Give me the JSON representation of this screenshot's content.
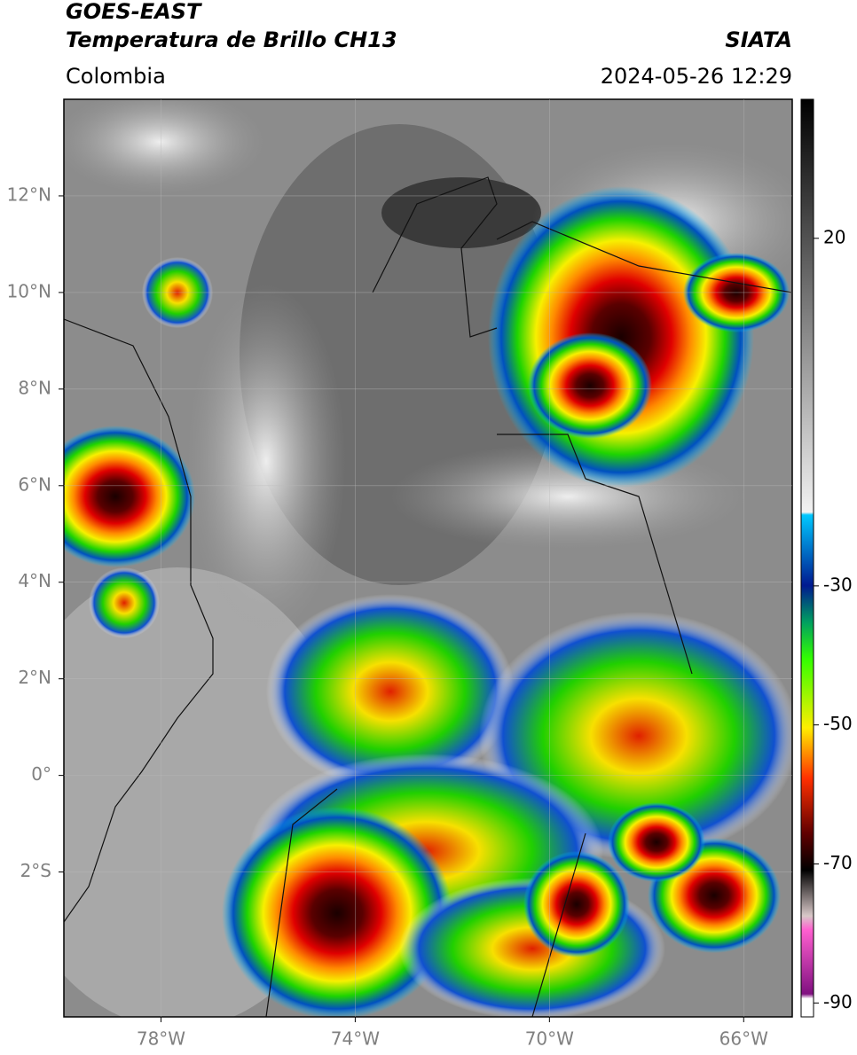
{
  "header": {
    "title": "GOES-EAST",
    "subtitle": "Temperatura de Brillo CH13",
    "source": "SIATA",
    "region": "Colombia",
    "timestamp": "2024-05-26 12:29"
  },
  "map": {
    "lon_range": [
      -80,
      -65
    ],
    "lat_range": [
      -5,
      14
    ],
    "lat_ticks": [
      {
        "value": 12,
        "label": "12°N"
      },
      {
        "value": 10,
        "label": "10°N"
      },
      {
        "value": 8,
        "label": "8°N"
      },
      {
        "value": 6,
        "label": "6°N"
      },
      {
        "value": 4,
        "label": "4°N"
      },
      {
        "value": 2,
        "label": "2°N"
      },
      {
        "value": 0,
        "label": "0°"
      },
      {
        "value": -2,
        "label": "2°S"
      }
    ],
    "lon_ticks": [
      {
        "value": -78,
        "label": "78°W"
      },
      {
        "value": -74,
        "label": "74°W"
      },
      {
        "value": -70,
        "label": "70°W"
      },
      {
        "value": -66,
        "label": "66°W"
      }
    ]
  },
  "colorbar": {
    "range": [
      -92,
      40
    ],
    "ticks": [
      20,
      -30,
      -50,
      -70,
      -90
    ]
  }
}
